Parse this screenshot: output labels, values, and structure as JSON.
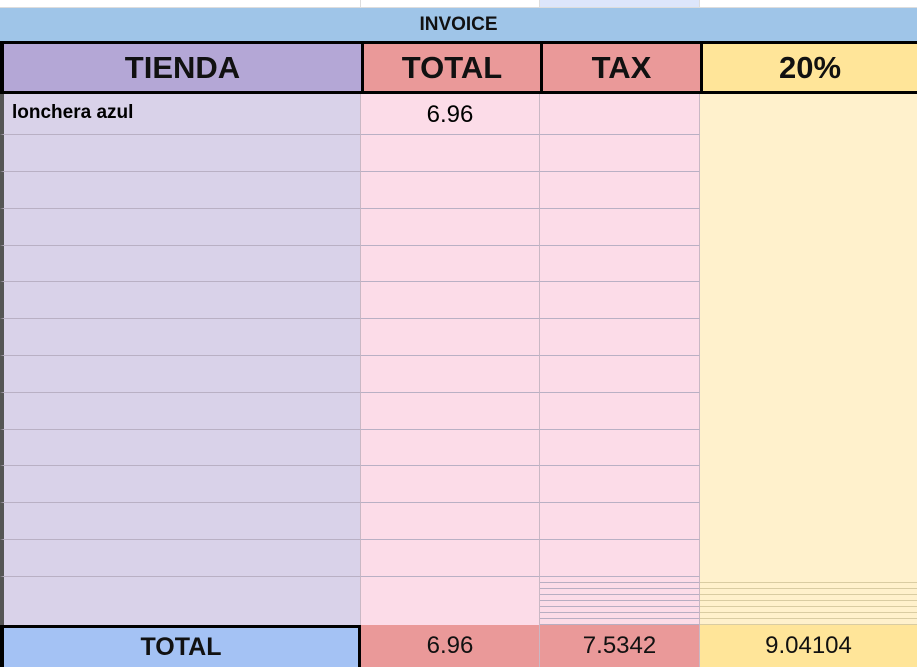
{
  "title": "INVOICE",
  "headers": [
    "TIENDA",
    "TOTAL",
    "TAX",
    "20%"
  ],
  "rows": [
    {
      "tienda": "lonchera azul",
      "total": "6.96",
      "tax": "",
      "pct": ""
    }
  ],
  "empty_row_count": 12,
  "totals": {
    "label": "TOTAL",
    "total": "6.96",
    "tax": "7.5342",
    "pct": "9.04104"
  },
  "colors": {
    "title_bg": "#9fc5e8",
    "tienda": "#b4a7d6",
    "total_tax": "#ea9999",
    "pct": "#ffe599",
    "total_label": "#a4c2f4"
  }
}
